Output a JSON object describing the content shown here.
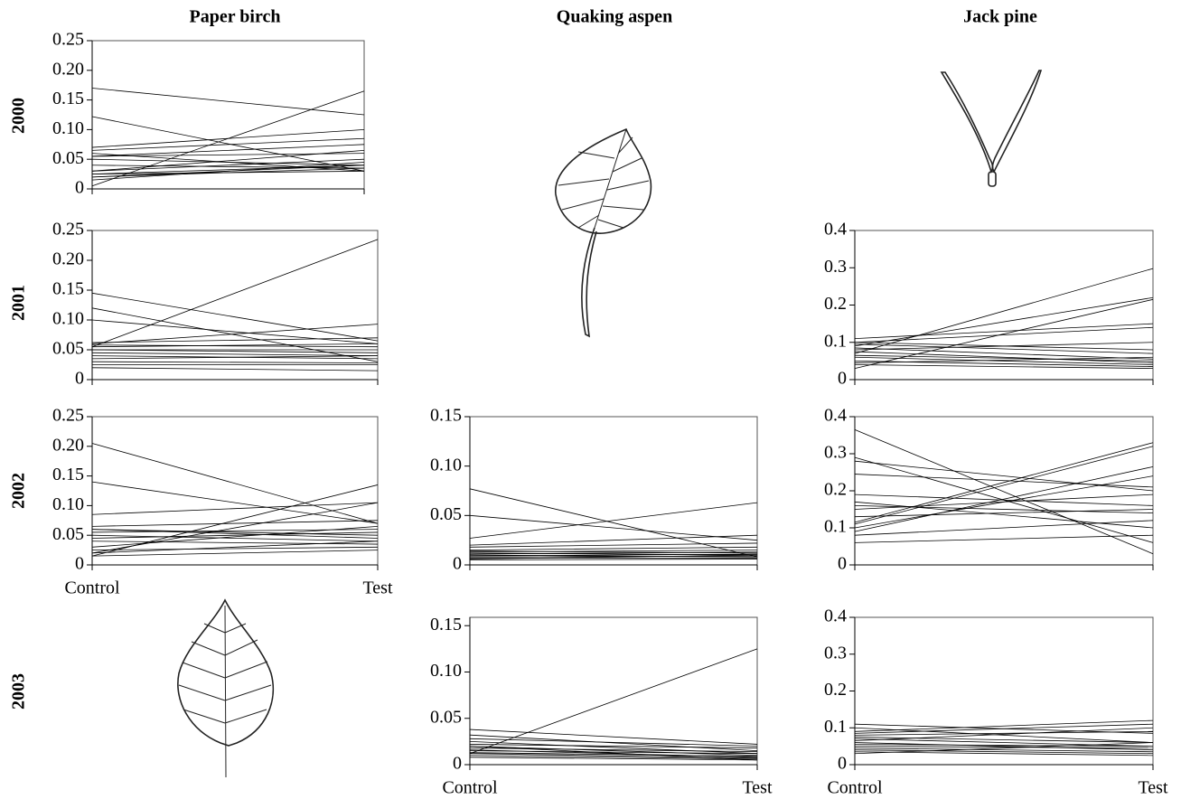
{
  "column_titles": [
    "Paper birch",
    "Quaking aspen",
    "Jack pine"
  ],
  "row_labels": [
    "2000",
    "2001",
    "2002",
    "2003"
  ],
  "chart_data": [
    {
      "type": "line",
      "color": "#000000",
      "categories": [
        null,
        null
      ],
      "ylim": [
        0,
        0.25
      ],
      "yticks": [
        0,
        0.05,
        {
          "value": 0.1,
          "label": "0.10"
        },
        0.15,
        {
          "value": 0.2,
          "label": "0.20"
        },
        0.25
      ],
      "series": [
        {
          "values": [
            0.17,
            0.125
          ]
        },
        {
          "values": [
            0.122,
            0.03
          ]
        },
        {
          "values": [
            0.005,
            0.165
          ]
        },
        {
          "values": [
            0.07,
            0.1
          ]
        },
        {
          "values": [
            0.065,
            0.085
          ]
        },
        {
          "values": [
            0.06,
            0.03
          ]
        },
        {
          "values": [
            0.055,
            0.075
          ]
        },
        {
          "values": [
            0.055,
            0.06
          ]
        },
        {
          "values": [
            0.05,
            0.04
          ]
        },
        {
          "values": [
            0.04,
            0.035
          ]
        },
        {
          "values": [
            0.03,
            0.05
          ]
        },
        {
          "values": [
            0.025,
            0.04
          ]
        },
        {
          "values": [
            0.02,
            0.035
          ]
        },
        {
          "values": [
            0.02,
            0.04
          ]
        },
        {
          "values": [
            0.025,
            0.03
          ]
        },
        {
          "values": [
            0.03,
            0.065
          ]
        },
        {
          "values": [
            0.015,
            0.045
          ]
        }
      ]
    },
    {
      "type": "line",
      "color": "#000000",
      "categories": [
        null,
        null
      ],
      "ylim": [
        0,
        0.25
      ],
      "yticks": [
        0,
        0.05,
        {
          "value": 0.1,
          "label": "0.10"
        },
        0.15,
        {
          "value": 0.2,
          "label": "0.20"
        },
        0.25
      ],
      "series": [
        {
          "values": [
            0.145,
            0.065
          ]
        },
        {
          "values": [
            0.12,
            0.03
          ]
        },
        {
          "values": [
            0.1,
            0.06
          ]
        },
        {
          "values": [
            0.055,
            0.235
          ]
        },
        {
          "values": [
            0.06,
            0.093
          ]
        },
        {
          "values": [
            0.062,
            0.07
          ]
        },
        {
          "values": [
            0.058,
            0.055
          ]
        },
        {
          "values": [
            0.055,
            0.06
          ]
        },
        {
          "values": [
            0.05,
            0.05
          ]
        },
        {
          "values": [
            0.045,
            0.04
          ]
        },
        {
          "values": [
            0.04,
            0.035
          ]
        },
        {
          "values": [
            0.035,
            0.04
          ]
        },
        {
          "values": [
            0.03,
            0.028
          ]
        },
        {
          "values": [
            0.025,
            0.025
          ]
        },
        {
          "values": [
            0.02,
            0.015
          ]
        },
        {
          "values": [
            0.05,
            0.045
          ]
        }
      ]
    },
    {
      "type": "line",
      "color": "#000000",
      "categories": [
        "Control",
        "Test"
      ],
      "ylim": [
        0,
        0.25
      ],
      "yticks": [
        0,
        0.05,
        {
          "value": 0.1,
          "label": "0.10"
        },
        0.15,
        {
          "value": 0.2,
          "label": "0.20"
        },
        0.25
      ],
      "series": [
        {
          "values": [
            0.205,
            0.07
          ]
        },
        {
          "values": [
            0.14,
            0.07
          ]
        },
        {
          "values": [
            0.015,
            0.135
          ]
        },
        {
          "values": [
            0.085,
            0.105
          ]
        },
        {
          "values": [
            0.065,
            0.075
          ]
        },
        {
          "values": [
            0.06,
            0.05
          ]
        },
        {
          "values": [
            0.06,
            0.045
          ]
        },
        {
          "values": [
            0.055,
            0.06
          ]
        },
        {
          "values": [
            0.05,
            0.04
          ]
        },
        {
          "values": [
            0.045,
            0.055
          ]
        },
        {
          "values": [
            0.04,
            0.035
          ]
        },
        {
          "values": [
            0.03,
            0.065
          ]
        },
        {
          "values": [
            0.025,
            0.03
          ]
        },
        {
          "values": [
            0.02,
            0.105
          ]
        },
        {
          "values": [
            0.015,
            0.025
          ]
        },
        {
          "values": [
            0.02,
            0.04
          ]
        }
      ]
    },
    {
      "type": "line",
      "color": "#000000",
      "categories": [
        null,
        null
      ],
      "ylim": [
        0,
        0.15
      ],
      "yticks": [
        0,
        0.05,
        {
          "value": 0.1,
          "label": "0.10"
        },
        0.15
      ],
      "series": [
        {
          "values": [
            0.077,
            0.008
          ]
        },
        {
          "values": [
            0.05,
            0.025
          ]
        },
        {
          "values": [
            0.027,
            0.063
          ]
        },
        {
          "values": [
            0.02,
            0.03
          ]
        },
        {
          "values": [
            0.018,
            0.022
          ]
        },
        {
          "values": [
            0.015,
            0.018
          ]
        },
        {
          "values": [
            0.014,
            0.012
          ]
        },
        {
          "values": [
            0.013,
            0.015
          ]
        },
        {
          "values": [
            0.012,
            0.01
          ]
        },
        {
          "values": [
            0.011,
            0.013
          ]
        },
        {
          "values": [
            0.01,
            0.008
          ]
        },
        {
          "values": [
            0.009,
            0.011
          ]
        },
        {
          "values": [
            0.008,
            0.009
          ]
        },
        {
          "values": [
            0.007,
            0.007
          ]
        },
        {
          "values": [
            0.006,
            0.01
          ]
        },
        {
          "values": [
            0.005,
            0.006
          ]
        }
      ]
    },
    {
      "type": "line",
      "color": "#000000",
      "categories": [
        "Control",
        "Test"
      ],
      "ylim": [
        0,
        0.159
      ],
      "yticks": [
        0,
        0.05,
        {
          "value": 0.1,
          "label": "0.10"
        },
        0.15
      ],
      "series": [
        {
          "values": [
            0.012,
            0.125
          ]
        },
        {
          "values": [
            0.038,
            0.022
          ]
        },
        {
          "values": [
            0.032,
            0.015
          ]
        },
        {
          "values": [
            0.028,
            0.02
          ]
        },
        {
          "values": [
            0.025,
            0.012
          ]
        },
        {
          "values": [
            0.022,
            0.018
          ]
        },
        {
          "values": [
            0.02,
            0.01
          ]
        },
        {
          "values": [
            0.018,
            0.014
          ]
        },
        {
          "values": [
            0.016,
            0.008
          ]
        },
        {
          "values": [
            0.015,
            0.012
          ]
        },
        {
          "values": [
            0.013,
            0.009
          ]
        },
        {
          "values": [
            0.012,
            0.007
          ]
        },
        {
          "values": [
            0.01,
            0.006
          ]
        },
        {
          "values": [
            0.008,
            0.005
          ]
        },
        {
          "values": [
            0.02,
            0.005
          ]
        }
      ]
    },
    {
      "type": "line",
      "color": "#000000",
      "categories": [
        null,
        null
      ],
      "ylim": [
        0,
        0.4
      ],
      "yticks": [
        0,
        0.1,
        0.2,
        0.3,
        0.4
      ],
      "series": [
        {
          "values": [
            0.07,
            0.298
          ]
        },
        {
          "values": [
            0.03,
            0.215
          ]
        },
        {
          "values": [
            0.09,
            0.22
          ]
        },
        {
          "values": [
            0.11,
            0.15
          ]
        },
        {
          "values": [
            0.1,
            0.14
          ]
        },
        {
          "values": [
            0.08,
            0.1
          ]
        },
        {
          "values": [
            0.1,
            0.08
          ]
        },
        {
          "values": [
            0.095,
            0.07
          ]
        },
        {
          "values": [
            0.085,
            0.055
          ]
        },
        {
          "values": [
            0.075,
            0.045
          ]
        },
        {
          "values": [
            0.065,
            0.05
          ]
        },
        {
          "values": [
            0.06,
            0.04
          ]
        },
        {
          "values": [
            0.05,
            0.035
          ]
        },
        {
          "values": [
            0.045,
            0.06
          ]
        },
        {
          "values": [
            0.04,
            0.03
          ]
        }
      ]
    },
    {
      "type": "line",
      "color": "#000000",
      "categories": [
        null,
        null
      ],
      "ylim": [
        0,
        0.4
      ],
      "yticks": [
        0,
        0.1,
        0.2,
        0.3,
        0.4
      ],
      "series": [
        {
          "values": [
            0.365,
            0.03
          ]
        },
        {
          "values": [
            0.29,
            0.06
          ]
        },
        {
          "values": [
            0.28,
            0.2
          ]
        },
        {
          "values": [
            0.245,
            0.21
          ]
        },
        {
          "values": [
            0.19,
            0.16
          ]
        },
        {
          "values": [
            0.17,
            0.1
          ]
        },
        {
          "values": [
            0.16,
            0.14
          ]
        },
        {
          "values": [
            0.15,
            0.19
          ]
        },
        {
          "values": [
            0.13,
            0.15
          ]
        },
        {
          "values": [
            0.115,
            0.33
          ]
        },
        {
          "values": [
            0.11,
            0.32
          ]
        },
        {
          "values": [
            0.09,
            0.265
          ]
        },
        {
          "values": [
            0.08,
            0.12
          ]
        },
        {
          "values": [
            0.06,
            0.08
          ]
        },
        {
          "values": [
            0.1,
            0.24
          ]
        }
      ]
    },
    {
      "type": "line",
      "color": "#000000",
      "categories": [
        "Control",
        "Test"
      ],
      "ylim": [
        0,
        0.4
      ],
      "yticks": [
        0,
        0.1,
        0.2,
        0.3,
        0.4
      ],
      "series": [
        {
          "values": [
            0.11,
            0.085
          ]
        },
        {
          "values": [
            0.1,
            0.06
          ]
        },
        {
          "values": [
            0.09,
            0.12
          ]
        },
        {
          "values": [
            0.085,
            0.11
          ]
        },
        {
          "values": [
            0.08,
            0.09
          ]
        },
        {
          "values": [
            0.075,
            0.06
          ]
        },
        {
          "values": [
            0.07,
            0.05
          ]
        },
        {
          "values": [
            0.065,
            0.1
          ]
        },
        {
          "values": [
            0.06,
            0.04
          ]
        },
        {
          "values": [
            0.055,
            0.05
          ]
        },
        {
          "values": [
            0.05,
            0.045
          ]
        },
        {
          "values": [
            0.045,
            0.035
          ]
        },
        {
          "values": [
            0.04,
            0.03
          ]
        },
        {
          "values": [
            0.035,
            0.025
          ]
        },
        {
          "values": [
            0.03,
            0.06
          ]
        }
      ]
    }
  ]
}
